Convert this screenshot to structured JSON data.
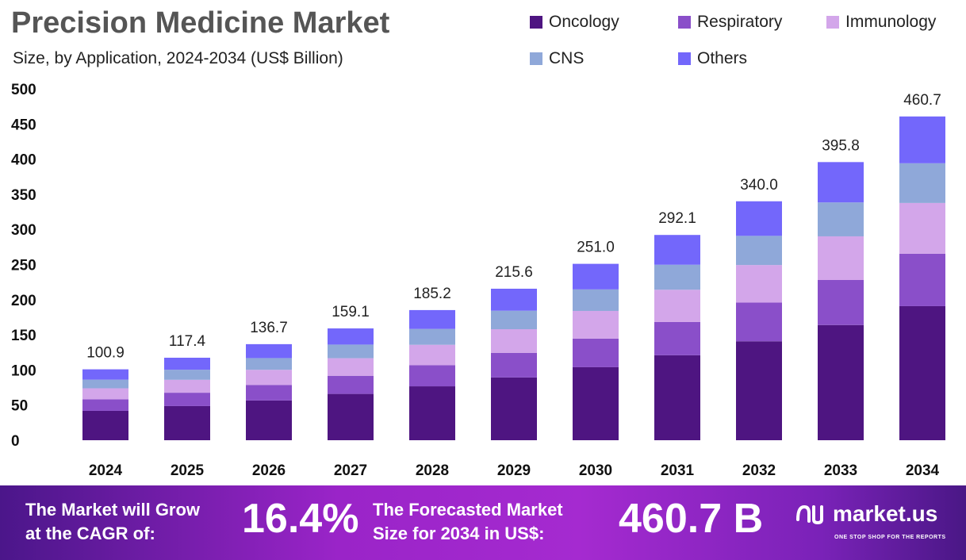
{
  "chart_data": {
    "type": "stacked-bar",
    "title": "Precision Medicine Market",
    "subtitle": "Size, by Application, 2024-2034 (US$ Billion)",
    "categories": [
      "2024",
      "2025",
      "2026",
      "2027",
      "2028",
      "2029",
      "2030",
      "2031",
      "2032",
      "2033",
      "2034"
    ],
    "totals": [
      "100.9",
      "117.4",
      "136.7",
      "159.1",
      "185.2",
      "215.6",
      "251.0",
      "292.1",
      "340.0",
      "395.8",
      "460.7"
    ],
    "series": [
      {
        "name": "Oncology",
        "color": "#4e1581",
        "values": [
          41.8,
          48.6,
          56.6,
          65.9,
          76.7,
          89.3,
          103.9,
          120.9,
          140.8,
          163.9,
          190.8
        ]
      },
      {
        "name": "Respiratory",
        "color": "#8a4fc9",
        "values": [
          16.3,
          19.0,
          22.1,
          25.8,
          30.0,
          34.9,
          40.7,
          47.3,
          55.1,
          64.1,
          74.5
        ]
      },
      {
        "name": "Immunology",
        "color": "#d3a6ea",
        "values": [
          15.8,
          18.4,
          21.5,
          25.0,
          29.1,
          33.8,
          39.4,
          45.9,
          53.4,
          62.1,
          72.3
        ]
      },
      {
        "name": "CNS",
        "color": "#8fa8d9",
        "values": [
          12.3,
          14.3,
          16.7,
          19.4,
          22.6,
          26.3,
          30.6,
          35.6,
          41.5,
          48.3,
          56.5
        ]
      },
      {
        "name": "Others",
        "color": "#7367fb",
        "values": [
          14.7,
          17.1,
          19.8,
          23.0,
          26.8,
          31.3,
          36.4,
          42.4,
          49.2,
          57.4,
          66.6
        ]
      }
    ],
    "yticks": [
      "0",
      "50",
      "100",
      "150",
      "200",
      "250",
      "300",
      "350",
      "400",
      "450",
      "500"
    ],
    "ylim": [
      0,
      500
    ],
    "grid": false,
    "legend_position": "top-right"
  },
  "banner": {
    "cagr_label_1": "The Market will Grow",
    "cagr_label_2": "at the CAGR of:",
    "cagr_value": "16.4%",
    "forecast_label_1": "The Forecasted Market",
    "forecast_label_2": "Size for 2034 in US$:",
    "forecast_value": "460.7 B",
    "logo_text": "market.us",
    "logo_tagline": "ONE STOP SHOP FOR THE REPORTS"
  }
}
